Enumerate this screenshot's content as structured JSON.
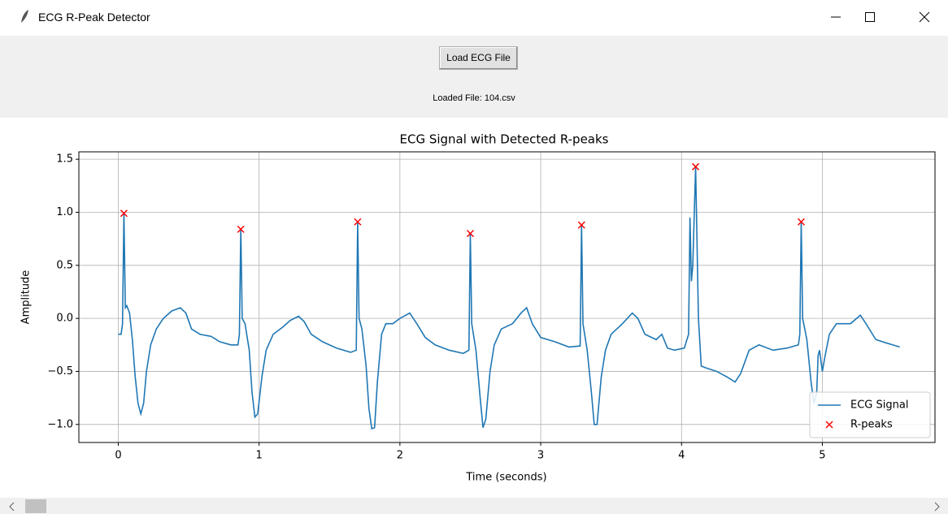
{
  "window": {
    "title": "ECG R-Peak Detector"
  },
  "toolbar": {
    "button": "Load ECG File",
    "status_label": "Loaded File: 104.csv"
  },
  "chart_data": {
    "type": "line",
    "title": "ECG Signal with Detected R-peaks",
    "xlabel": "Time (seconds)",
    "ylabel": "Amplitude",
    "xlim": [
      -0.28,
      5.8
    ],
    "ylim": [
      -1.17,
      1.57
    ],
    "xticks": [
      0,
      1,
      2,
      3,
      4,
      5
    ],
    "yticks": [
      {
        "value": 1.5,
        "label": "1.5"
      },
      {
        "value": 1.0,
        "label": "1.0"
      },
      {
        "value": 0.5,
        "label": "0.5"
      },
      {
        "value": 0.0,
        "label": "0.0"
      },
      {
        "value": -0.5,
        "label": "−0.5"
      },
      {
        "value": -1.0,
        "label": "−1.0"
      }
    ],
    "grid": true,
    "legend": "lower right",
    "series": [
      {
        "name": "ECG Signal",
        "color": "#1f77b4",
        "type": "line",
        "x": [
          0,
          0.02,
          0.03,
          0.04,
          0.05,
          0.06,
          0.08,
          0.1,
          0.12,
          0.14,
          0.16,
          0.18,
          0.2,
          0.23,
          0.27,
          0.32,
          0.38,
          0.44,
          0.48,
          0.52,
          0.58,
          0.66,
          0.72,
          0.8,
          0.85,
          0.86,
          0.87,
          0.88,
          0.9,
          0.93,
          0.95,
          0.97,
          0.99,
          1.02,
          1.05,
          1.1,
          1.17,
          1.22,
          1.28,
          1.32,
          1.37,
          1.45,
          1.55,
          1.65,
          1.69,
          1.7,
          1.71,
          1.73,
          1.76,
          1.78,
          1.8,
          1.82,
          1.84,
          1.87,
          1.9,
          1.95,
          2.0,
          2.07,
          2.12,
          2.18,
          2.25,
          2.35,
          2.45,
          2.49,
          2.5,
          2.51,
          2.54,
          2.57,
          2.59,
          2.61,
          2.64,
          2.67,
          2.72,
          2.8,
          2.86,
          2.9,
          2.94,
          3.0,
          3.1,
          3.2,
          3.28,
          3.29,
          3.3,
          3.33,
          3.36,
          3.38,
          3.4,
          3.43,
          3.46,
          3.5,
          3.58,
          3.65,
          3.69,
          3.74,
          3.82,
          3.86,
          3.9,
          3.95,
          4.02,
          4.05,
          4.06,
          4.07,
          4.08,
          4.1,
          4.12,
          4.14,
          4.18,
          4.25,
          4.32,
          4.38,
          4.42,
          4.48,
          4.55,
          4.65,
          4.75,
          4.83,
          4.84,
          4.85,
          4.86,
          4.89,
          4.92,
          4.94,
          4.96,
          4.97,
          4.98,
          5.0,
          5.02,
          5.05,
          5.1,
          5.2,
          5.27,
          5.31,
          5.38,
          5.45,
          5.5,
          5.55
        ],
        "values": [
          -0.15,
          -0.15,
          -0.05,
          0.99,
          0.1,
          0.12,
          0.05,
          -0.2,
          -0.55,
          -0.8,
          -0.9,
          -0.8,
          -0.5,
          -0.25,
          -0.1,
          0.0,
          0.07,
          0.1,
          0.05,
          -0.1,
          -0.15,
          -0.17,
          -0.22,
          -0.25,
          -0.25,
          -0.15,
          0.84,
          0.0,
          -0.05,
          -0.3,
          -0.7,
          -0.93,
          -0.9,
          -0.55,
          -0.3,
          -0.15,
          -0.08,
          -0.02,
          0.02,
          -0.03,
          -0.15,
          -0.22,
          -0.28,
          -0.32,
          -0.3,
          0.91,
          0.0,
          -0.1,
          -0.45,
          -0.85,
          -1.04,
          -1.03,
          -0.6,
          -0.15,
          -0.05,
          -0.05,
          0.0,
          0.05,
          -0.05,
          -0.18,
          -0.25,
          -0.3,
          -0.33,
          -0.3,
          0.8,
          -0.05,
          -0.3,
          -0.75,
          -1.03,
          -0.95,
          -0.5,
          -0.25,
          -0.1,
          -0.05,
          0.05,
          0.1,
          -0.05,
          -0.18,
          -0.22,
          -0.27,
          -0.26,
          0.88,
          -0.05,
          -0.3,
          -0.7,
          -1.0,
          -1.0,
          -0.55,
          -0.3,
          -0.15,
          -0.05,
          0.05,
          0.0,
          -0.15,
          -0.2,
          -0.15,
          -0.28,
          -0.3,
          -0.28,
          -0.15,
          0.95,
          0.35,
          0.5,
          1.43,
          0.0,
          -0.45,
          -0.47,
          -0.5,
          -0.55,
          -0.6,
          -0.52,
          -0.3,
          -0.25,
          -0.3,
          -0.28,
          -0.25,
          -0.15,
          0.91,
          0.0,
          -0.2,
          -0.6,
          -0.8,
          -0.7,
          -0.35,
          -0.3,
          -0.5,
          -0.35,
          -0.15,
          -0.05,
          -0.05,
          0.03,
          -0.05,
          -0.2,
          -0.23,
          -0.25,
          -0.27
        ]
      },
      {
        "name": "R-peaks",
        "color": "#ff0000",
        "type": "scatter",
        "marker": "x",
        "x": [
          0.04,
          0.87,
          1.7,
          2.5,
          3.29,
          4.1,
          4.85
        ],
        "values": [
          0.99,
          0.84,
          0.91,
          0.8,
          0.88,
          1.43,
          0.91
        ]
      }
    ]
  }
}
